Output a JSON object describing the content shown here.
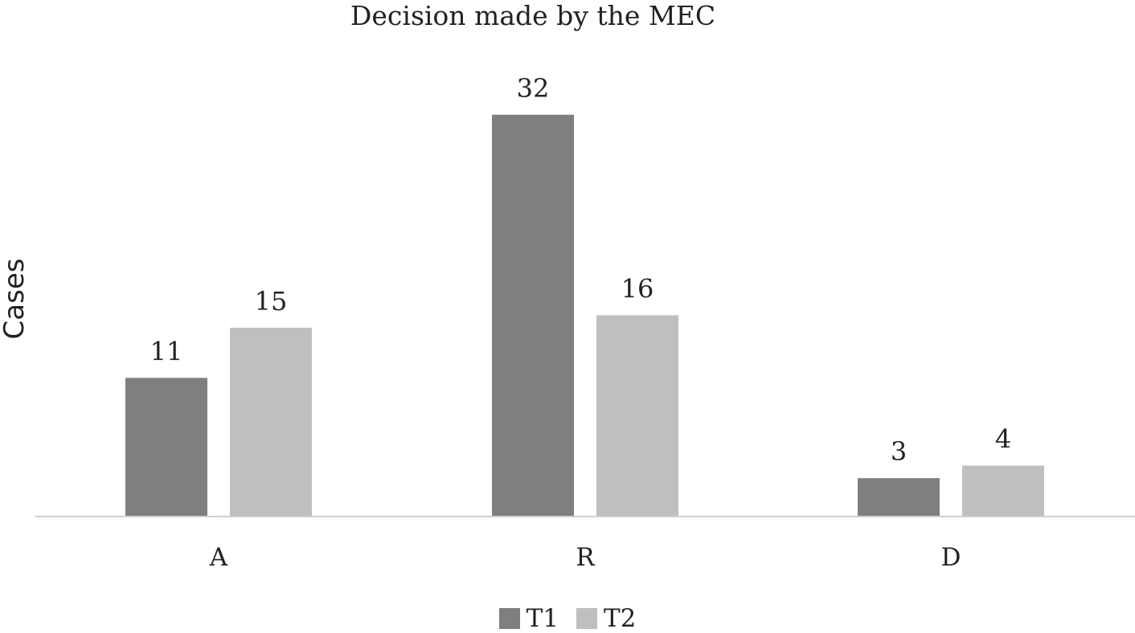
{
  "chart_data": {
    "type": "bar",
    "title": "Decision made by the MEC",
    "xlabel": "",
    "ylabel": "Cases",
    "categories": [
      "A",
      "R",
      "D"
    ],
    "series": [
      {
        "name": "T1",
        "values": [
          11,
          32,
          3
        ],
        "color": "#7f7f81"
      },
      {
        "name": "T2",
        "values": [
          15,
          16,
          4
        ],
        "color": "#bfbfc1"
      }
    ],
    "ylim": [
      0,
      32
    ],
    "grid": false,
    "legend_position": "bottom"
  }
}
